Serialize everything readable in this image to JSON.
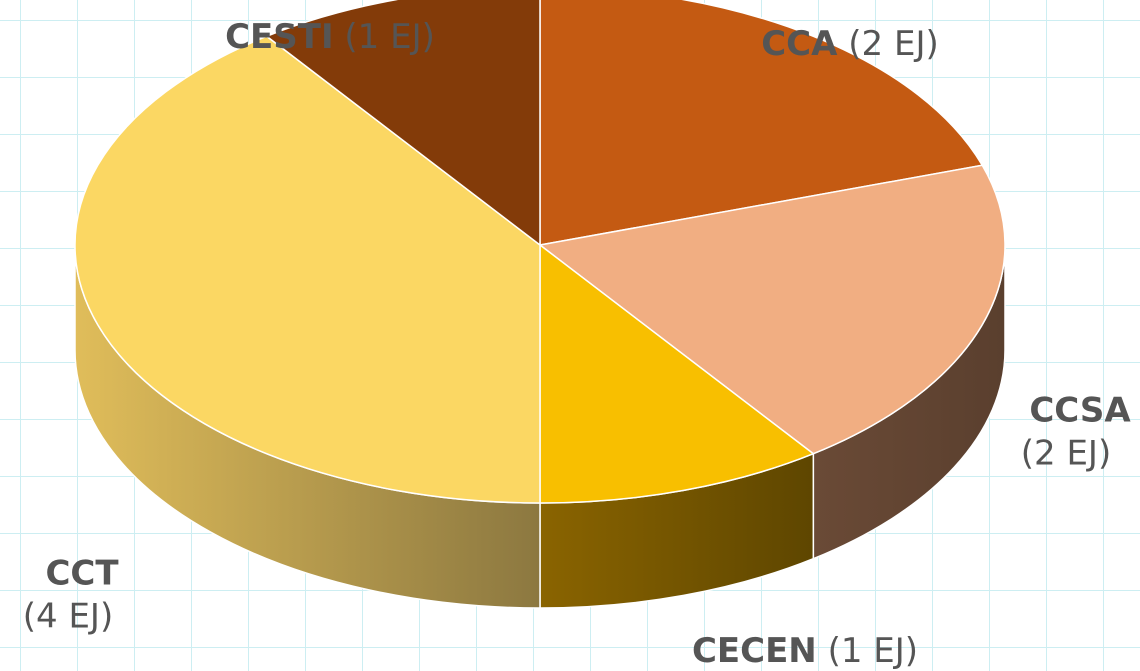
{
  "chart_data": {
    "type": "pie3d",
    "categories": [
      "CCA",
      "CCSA",
      "CECEN",
      "CCT",
      "CESTI"
    ],
    "values": [
      2,
      2,
      1,
      4,
      1
    ],
    "value_labels": [
      "(2 EJ)",
      "(2 EJ)",
      "(1 EJ)",
      "(4 EJ)",
      "(1 EJ)"
    ],
    "colors": [
      "#c45a12",
      "#f1ae82",
      "#f8bf00",
      "#fbd763",
      "#833b09"
    ]
  }
}
